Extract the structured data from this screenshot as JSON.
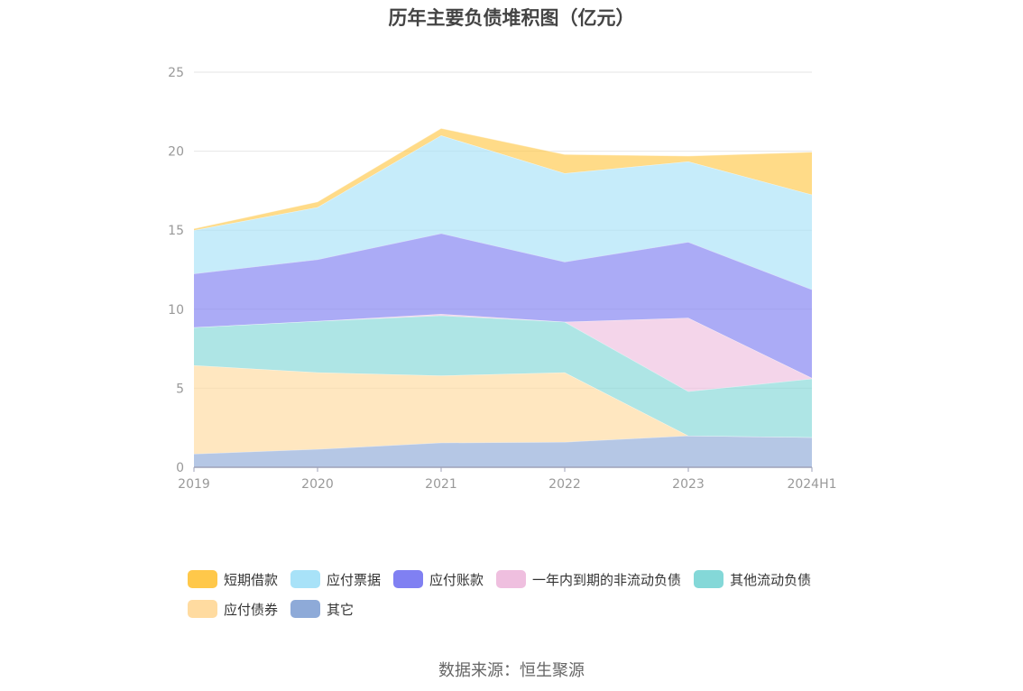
{
  "chart_data": {
    "type": "area",
    "stacked": true,
    "title": "历年主要负债堆积图（亿元）",
    "categories": [
      "2019",
      "2020",
      "2021",
      "2022",
      "2023",
      "2024H1"
    ],
    "ylim": [
      0,
      25
    ],
    "yticks": [
      "0",
      "5",
      "10",
      "15",
      "20",
      "25"
    ],
    "grid": true,
    "legend_position": "bottom",
    "series": [
      {
        "name": "其它",
        "color": "#8eaad8",
        "values": [
          0.85,
          1.15,
          1.55,
          1.6,
          2.0,
          1.9
        ]
      },
      {
        "name": "应付债券",
        "color": "#ffdba0",
        "values": [
          5.6,
          4.85,
          4.25,
          4.4,
          0,
          0
        ]
      },
      {
        "name": "其他流动负债",
        "color": "#84d8d8",
        "values": [
          2.4,
          3.25,
          3.8,
          3.2,
          2.8,
          3.7
        ]
      },
      {
        "name": "一年内到期的非流动负债",
        "color": "#efbfdf",
        "values": [
          0,
          0,
          0.1,
          0,
          4.65,
          0.05
        ]
      },
      {
        "name": "应付账款",
        "color": "#8080f2",
        "values": [
          3.4,
          3.9,
          5.1,
          3.8,
          4.8,
          5.6
        ]
      },
      {
        "name": "应付票据",
        "color": "#a8e2f8",
        "values": [
          2.75,
          3.3,
          6.2,
          5.6,
          5.1,
          6.0
        ]
      },
      {
        "name": "短期借款",
        "color": "#ffc84a",
        "values": [
          0.1,
          0.35,
          0.45,
          1.2,
          0.35,
          2.7
        ]
      }
    ],
    "legend_order": [
      "短期借款",
      "应付票据",
      "应付账款",
      "一年内到期的非流动负债",
      "其他流动负债",
      "应付债券",
      "其它"
    ],
    "source": "数据来源：恒生聚源"
  }
}
